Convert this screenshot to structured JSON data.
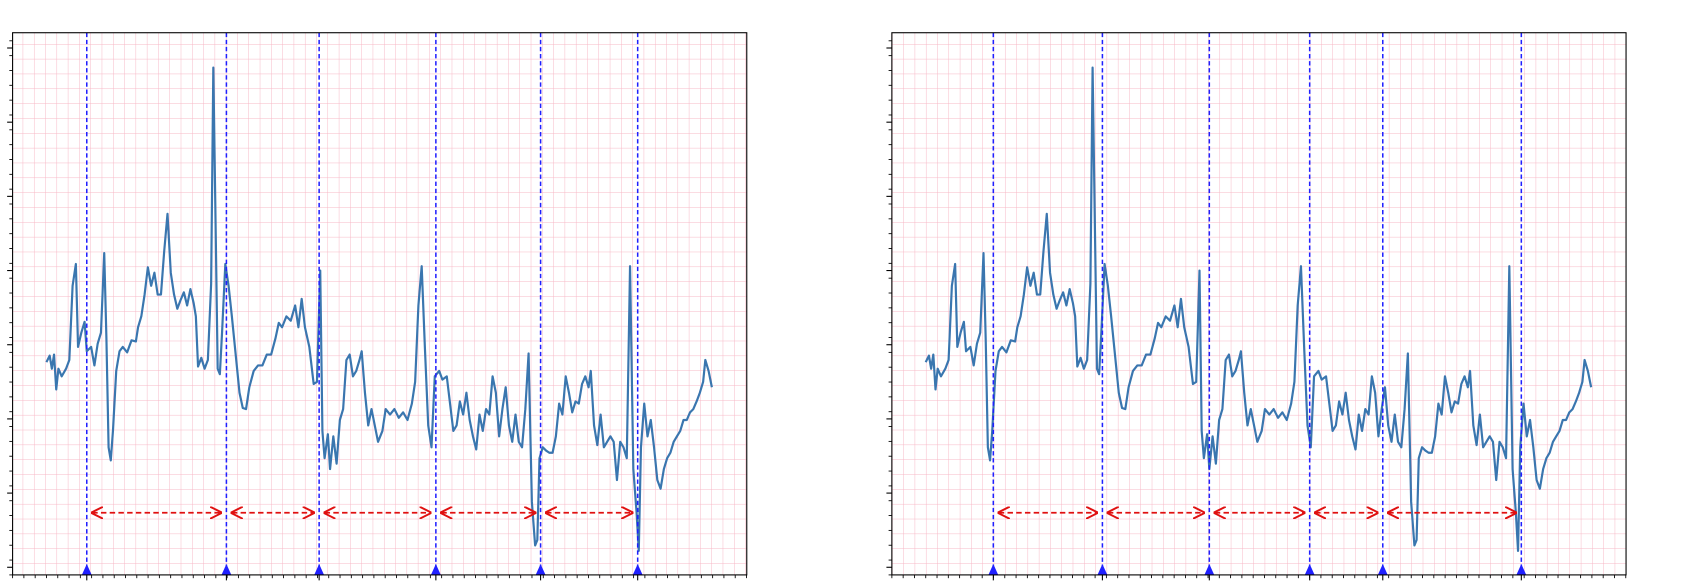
{
  "chart_data": [
    {
      "type": "line",
      "x": [
        42,
        45,
        47,
        49,
        51,
        53,
        56,
        60,
        63,
        66,
        69,
        71,
        74,
        77,
        79,
        83,
        86,
        89,
        92,
        95,
        97,
        99,
        101,
        103,
        106,
        109,
        112,
        116,
        120,
        124,
        126,
        129,
        132,
        135,
        138,
        141,
        144,
        147,
        150,
        153,
        156,
        159,
        162,
        165,
        168,
        171,
        174,
        177,
        179,
        181,
        184,
        187,
        190,
        193,
        195,
        197,
        199,
        201,
        203,
        206,
        209,
        212,
        215,
        219,
        222,
        225,
        228,
        232,
        236,
        240,
        244,
        248,
        252,
        255,
        258,
        262,
        266,
        270,
        273,
        276,
        279,
        283,
        287,
        290,
        293,
        295,
        297,
        300,
        302,
        305,
        308,
        311,
        314,
        317,
        320,
        323,
        326,
        329,
        331,
        334,
        337,
        340,
        343,
        346,
        350,
        353,
        357,
        361,
        365,
        369,
        373,
        377,
        380,
        383,
        386,
        389,
        392,
        395,
        398,
        402,
        405,
        409,
        412,
        415,
        418,
        421,
        424,
        427,
        430,
        433,
        436,
        439,
        442,
        445,
        448,
        451,
        454,
        457,
        460,
        463,
        466,
        469,
        472,
        475,
        478,
        481,
        484,
        487,
        490,
        492,
        494,
        497,
        500,
        503,
        506,
        509,
        512,
        515,
        518,
        521,
        524,
        527,
        530,
        533,
        536,
        539,
        541,
        544,
        547,
        550,
        553,
        556,
        559,
        562,
        565,
        568,
        571,
        574,
        577,
        580,
        583,
        585,
        587,
        590,
        593,
        596,
        599,
        602,
        605,
        608,
        611,
        614,
        617,
        620,
        623,
        626,
        629,
        632,
        635,
        638,
        641,
        644,
        646,
        649,
        652
      ],
      "series": [
        {
          "color": "#3a76af",
          "values": [
            188,
            194,
            182,
            195,
            163,
            182,
            175,
            182,
            190,
            258,
            278,
            202,
            215,
            225,
            198,
            202,
            185,
            205,
            215,
            288,
            210,
            110,
            98,
            125,
            180,
            198,
            202,
            197,
            208,
            207,
            220,
            230,
            250,
            275,
            258,
            270,
            250,
            250,
            290,
            324,
            270,
            250,
            237,
            245,
            252,
            240,
            255,
            242,
            230,
            184,
            192,
            182,
            190,
            260,
            458,
            320,
            182,
            177,
            215,
            278,
            258,
            230,
            200,
            160,
            146,
            145,
            165,
            180,
            185,
            185,
            195,
            195,
            210,
            224,
            220,
            230,
            226,
            240,
            220,
            246,
            220,
            202,
            168,
            170,
            272,
            125,
            100,
            122,
            90,
            120,
            95,
            135,
            145,
            190,
            195,
            175,
            180,
            190,
            198,
            160,
            130,
            145,
            130,
            115,
            125,
            145,
            140,
            145,
            137,
            142,
            135,
            150,
            170,
            240,
            276,
            200,
            130,
            110,
            175,
            180,
            172,
            175,
            150,
            125,
            130,
            152,
            140,
            160,
            135,
            120,
            108,
            140,
            125,
            145,
            140,
            175,
            160,
            120,
            145,
            165,
            130,
            115,
            140,
            115,
            110,
            145,
            196,
            60,
            20,
            25,
            100,
            110,
            107,
            105,
            105,
            120,
            150,
            140,
            175,
            160,
            142,
            152,
            150,
            168,
            175,
            165,
            180,
            130,
            112,
            140,
            110,
            115,
            120,
            115,
            80,
            115,
            110,
            100,
            276,
            90,
            50,
            15,
            110,
            150,
            120,
            135,
            110,
            80,
            72,
            90,
            100,
            105,
            115,
            120,
            125,
            135,
            135,
            142,
            145,
            152,
            160,
            170,
            190,
            180,
            165
          ]
        }
      ],
      "beats": [
        79,
        207,
        292,
        399,
        495,
        584
      ],
      "beat_color": "#2020ff",
      "interval_y": 50,
      "interval_color": "#e01010",
      "xlim": [
        11,
        684
      ],
      "ylim": [
        -7,
        490
      ],
      "yticks": [
        0,
        68,
        136,
        204,
        272,
        340,
        408,
        476
      ]
    },
    {
      "type": "line",
      "x": [
        42,
        45,
        47,
        49,
        51,
        53,
        56,
        60,
        63,
        66,
        69,
        71,
        74,
        77,
        79,
        83,
        86,
        89,
        92,
        95,
        97,
        99,
        101,
        103,
        106,
        109,
        112,
        116,
        120,
        124,
        126,
        129,
        132,
        135,
        138,
        141,
        144,
        147,
        150,
        153,
        156,
        159,
        162,
        165,
        168,
        171,
        174,
        177,
        179,
        181,
        184,
        187,
        190,
        193,
        195,
        197,
        199,
        201,
        203,
        206,
        209,
        212,
        215,
        219,
        222,
        225,
        228,
        232,
        236,
        240,
        244,
        248,
        252,
        255,
        258,
        262,
        266,
        270,
        273,
        276,
        279,
        283,
        287,
        290,
        293,
        295,
        297,
        300,
        302,
        305,
        308,
        311,
        314,
        317,
        320,
        323,
        326,
        329,
        331,
        334,
        337,
        340,
        343,
        346,
        350,
        353,
        357,
        361,
        365,
        369,
        373,
        377,
        380,
        383,
        386,
        389,
        392,
        395,
        398,
        402,
        405,
        409,
        412,
        415,
        418,
        421,
        424,
        427,
        430,
        433,
        436,
        439,
        442,
        445,
        448,
        451,
        454,
        457,
        460,
        463,
        466,
        469,
        472,
        475,
        478,
        481,
        484,
        487,
        490,
        492,
        494,
        497,
        500,
        503,
        506,
        509,
        512,
        515,
        518,
        521,
        524,
        527,
        530,
        533,
        536,
        539,
        541,
        544,
        547,
        550,
        553,
        556,
        559,
        562,
        565,
        568,
        571,
        574,
        577,
        580,
        583,
        585,
        587,
        590,
        593,
        596,
        599,
        602,
        605,
        608,
        611,
        614,
        617,
        620,
        623,
        626,
        629,
        632,
        635,
        638,
        641,
        644,
        646,
        649,
        652
      ],
      "series": [
        {
          "color": "#3a76af",
          "values": [
            188,
            194,
            182,
            195,
            163,
            182,
            175,
            182,
            190,
            258,
            278,
            202,
            215,
            225,
            198,
            202,
            185,
            205,
            215,
            288,
            210,
            110,
            98,
            125,
            180,
            198,
            202,
            197,
            208,
            207,
            220,
            230,
            250,
            275,
            258,
            270,
            250,
            250,
            290,
            324,
            270,
            250,
            237,
            245,
            252,
            240,
            255,
            242,
            230,
            184,
            192,
            182,
            190,
            260,
            458,
            320,
            182,
            177,
            215,
            278,
            258,
            230,
            200,
            160,
            146,
            145,
            165,
            180,
            185,
            185,
            195,
            195,
            210,
            224,
            220,
            230,
            226,
            240,
            220,
            246,
            220,
            202,
            168,
            170,
            272,
            125,
            100,
            122,
            90,
            120,
            95,
            135,
            145,
            190,
            195,
            175,
            180,
            190,
            198,
            160,
            130,
            145,
            130,
            115,
            125,
            145,
            140,
            145,
            137,
            142,
            135,
            150,
            170,
            240,
            276,
            200,
            130,
            110,
            175,
            180,
            172,
            175,
            150,
            125,
            130,
            152,
            140,
            160,
            135,
            120,
            108,
            140,
            125,
            145,
            140,
            175,
            160,
            120,
            145,
            165,
            130,
            115,
            140,
            115,
            110,
            145,
            196,
            60,
            20,
            25,
            100,
            110,
            107,
            105,
            105,
            120,
            150,
            140,
            175,
            160,
            142,
            152,
            150,
            168,
            175,
            165,
            180,
            130,
            112,
            140,
            110,
            115,
            120,
            115,
            80,
            115,
            110,
            100,
            276,
            90,
            50,
            15,
            110,
            150,
            120,
            135,
            110,
            80,
            72,
            90,
            100,
            105,
            115,
            120,
            125,
            135,
            135,
            142,
            145,
            152,
            160,
            170,
            190,
            180,
            165
          ]
        }
      ],
      "beats": [
        104,
        204,
        302,
        394,
        461,
        588
      ],
      "beat_color": "#2020ff",
      "interval_y": 50,
      "interval_color": "#e01010",
      "xlim": [
        11,
        684
      ],
      "ylim": [
        -7,
        490
      ],
      "yticks": [
        0,
        68,
        136,
        204,
        272,
        340,
        408,
        476
      ]
    }
  ]
}
